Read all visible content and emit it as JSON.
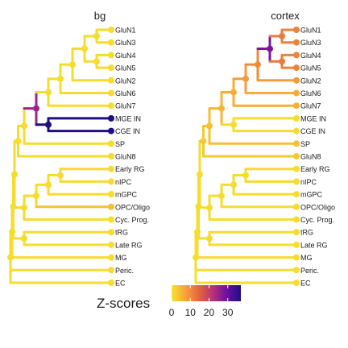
{
  "chart_data": {
    "type": "dendrogram",
    "legend": {
      "title": "Z-scores",
      "ticks": [
        "0",
        "10",
        "20",
        "30"
      ],
      "range": [
        0,
        37
      ],
      "colors": [
        "#f5e52b",
        "#f7a13a",
        "#e1643d",
        "#b8307a",
        "#6a0fa0",
        "#1d0f80"
      ]
    },
    "leaves": [
      "GluN1",
      "GluN3",
      "GluN4",
      "GluN5",
      "GluN2",
      "GluN6",
      "GluN7",
      "MGE IN",
      "CGE IN",
      "SP",
      "GluN8",
      "Early RG",
      "nIPC",
      "mGPC",
      "OPC/Oligo",
      "Cyc. Prog.",
      "tRG",
      "Late RG",
      "MG",
      "Peric.",
      "EC"
    ],
    "panels": [
      {
        "title": "bg",
        "leaf_scores": {
          "GluN1": 1,
          "GluN3": 1,
          "GluN4": 1,
          "GluN5": 1,
          "GluN2": 1,
          "GluN6": 1,
          "GluN7": 1,
          "MGE IN": 37,
          "CGE IN": 37,
          "SP": 1,
          "GluN8": 1,
          "Early RG": 1,
          "nIPC": 1,
          "mGPC": 1,
          "OPC/Oligo": 4,
          "Cyc. Prog.": 1,
          "tRG": 1,
          "Late RG": 1,
          "MG": 1,
          "Peric.": 1,
          "EC": 1
        },
        "node_scores": {
          "n_N13": 1,
          "n_N45": 1,
          "n_N1345": 1,
          "n_N13452": 1,
          "n_N6": 1,
          "n_N7": 1,
          "n_IN": 37,
          "n_N7IN": 25,
          "n_SP": 1,
          "n_N8": 1,
          "n_RG1": 1,
          "n_RG2": 1,
          "n_RG3": 1,
          "n_RG4": 1,
          "n_RG5": 1,
          "n_ALL6": 1,
          "n_ALL7": 1,
          "n_ALL8": 1
        }
      },
      {
        "title": "cortex",
        "leaf_scores": {
          "GluN1": 11,
          "GluN3": 11,
          "GluN4": 11,
          "GluN5": 11,
          "GluN2": 8,
          "GluN6": 6,
          "GluN7": 6,
          "MGE IN": 1,
          "CGE IN": 1,
          "SP": 4,
          "GluN8": 3,
          "Early RG": 1,
          "nIPC": 1,
          "mGPC": 1,
          "OPC/Oligo": 1,
          "Cyc. Prog.": 1,
          "tRG": 1,
          "Late RG": 1,
          "MG": 1,
          "Peric.": 1,
          "EC": 1
        },
        "node_scores": {
          "n_N13": 12,
          "n_N45": 12,
          "n_N1345": 28,
          "n_N13452": 10,
          "n_N6": 8,
          "n_N7": 6,
          "n_IN": 1,
          "n_N7IN": 5,
          "n_SP": 4,
          "n_N8": 3,
          "n_RG1": 1,
          "n_RG2": 1,
          "n_RG3": 1,
          "n_RG4": 1,
          "n_RG5": 1,
          "n_ALL6": 1,
          "n_ALL7": 1,
          "n_ALL8": 1
        }
      }
    ]
  }
}
